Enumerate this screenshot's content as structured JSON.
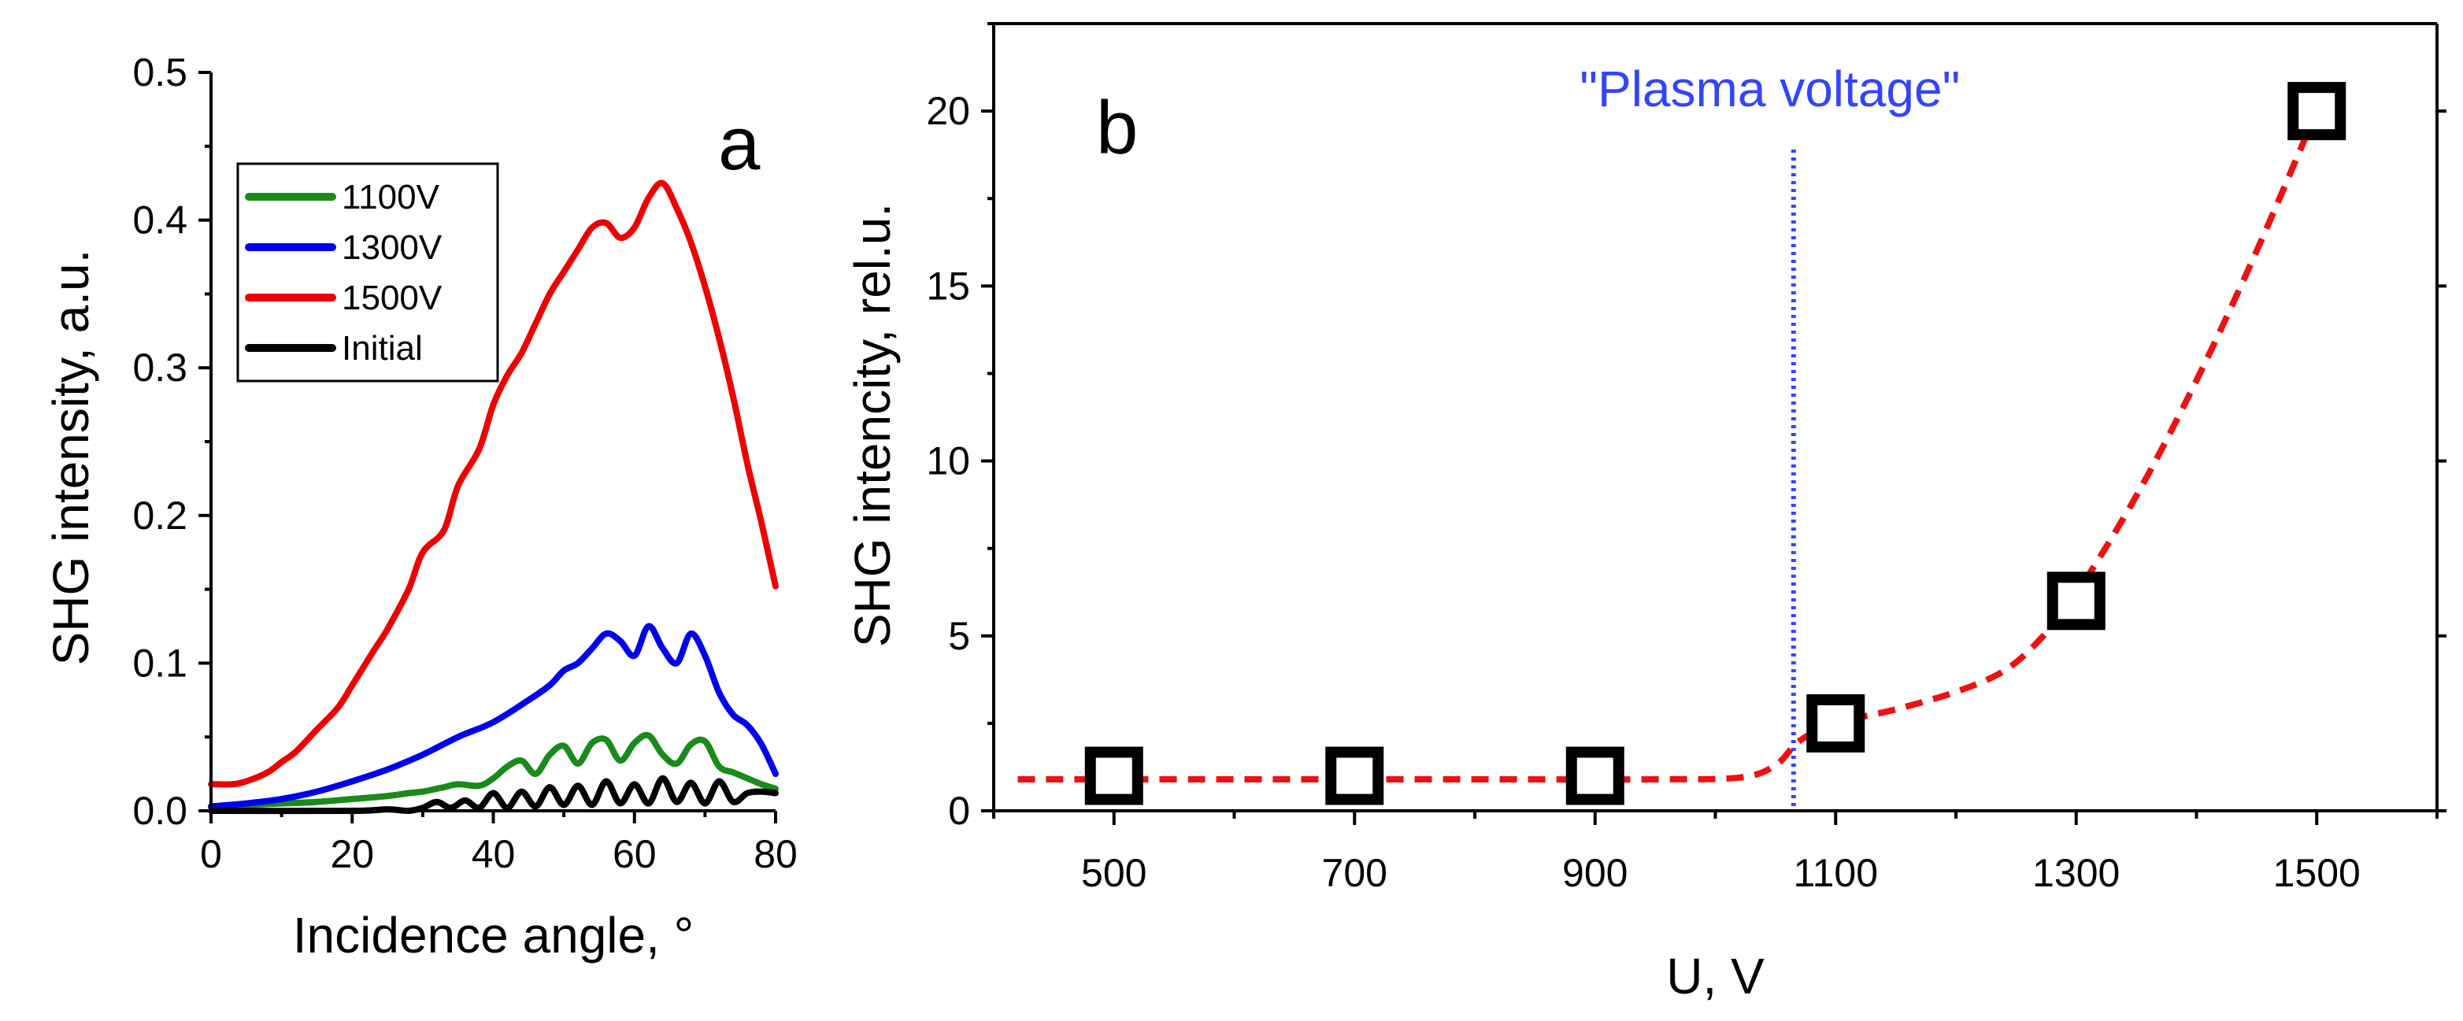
{
  "colors": {
    "green": "#1a8a1a",
    "blue": "#0000ee",
    "red": "#ee0000",
    "black": "#000000",
    "vline": "#3344ff",
    "fit": "#ee1111"
  },
  "chart_data": [
    {
      "id": "a",
      "type": "line",
      "panel_label": "a",
      "xlabel": "Incidence angle, °",
      "ylabel": "SHG intensity, a.u.",
      "xlim": [
        0,
        80
      ],
      "ylim": [
        0,
        0.5
      ],
      "xticks": [
        0,
        20,
        40,
        60,
        80
      ],
      "xtick_labels": [
        "0",
        "20",
        "40",
        "60",
        "80"
      ],
      "yticks": [
        0.0,
        0.1,
        0.2,
        0.3,
        0.4,
        0.5
      ],
      "ytick_labels": [
        "0.0",
        "0.1",
        "0.2",
        "0.3",
        "0.4",
        "0.5"
      ],
      "legend_position": "top-left",
      "series": [
        {
          "name": "1100V",
          "color_key": "green",
          "x": [
            0,
            5,
            10,
            15,
            20,
            25,
            28,
            30,
            33,
            35,
            38,
            40,
            42,
            44,
            46,
            48,
            50,
            52,
            54,
            56,
            58,
            60,
            62,
            64,
            66,
            68,
            70,
            72,
            74,
            76,
            78,
            80
          ],
          "y": [
            0.003,
            0.004,
            0.005,
            0.006,
            0.008,
            0.01,
            0.012,
            0.013,
            0.016,
            0.018,
            0.017,
            0.022,
            0.03,
            0.034,
            0.025,
            0.038,
            0.044,
            0.032,
            0.046,
            0.048,
            0.034,
            0.046,
            0.051,
            0.038,
            0.032,
            0.045,
            0.047,
            0.03,
            0.026,
            0.022,
            0.018,
            0.015
          ]
        },
        {
          "name": "1300V",
          "color_key": "blue",
          "x": [
            0,
            5,
            10,
            15,
            20,
            25,
            30,
            35,
            40,
            45,
            48,
            50,
            52,
            54,
            56,
            58,
            60,
            62,
            64,
            66,
            68,
            70,
            72,
            74,
            76,
            78,
            80
          ],
          "y": [
            0.003,
            0.005,
            0.008,
            0.013,
            0.02,
            0.028,
            0.038,
            0.05,
            0.06,
            0.075,
            0.085,
            0.095,
            0.1,
            0.11,
            0.12,
            0.115,
            0.105,
            0.125,
            0.11,
            0.1,
            0.12,
            0.105,
            0.08,
            0.065,
            0.058,
            0.045,
            0.025
          ]
        },
        {
          "name": "1500V",
          "color_key": "red",
          "x": [
            0,
            3,
            5,
            8,
            10,
            12,
            15,
            18,
            20,
            23,
            25,
            28,
            30,
            33,
            35,
            38,
            40,
            42,
            44,
            46,
            48,
            50,
            52,
            54,
            56,
            58,
            60,
            62,
            64,
            66,
            68,
            70,
            72,
            74,
            76,
            78,
            80
          ],
          "y": [
            0.018,
            0.018,
            0.02,
            0.026,
            0.033,
            0.04,
            0.055,
            0.07,
            0.085,
            0.108,
            0.123,
            0.15,
            0.175,
            0.19,
            0.22,
            0.245,
            0.275,
            0.295,
            0.31,
            0.33,
            0.35,
            0.365,
            0.38,
            0.395,
            0.398,
            0.388,
            0.395,
            0.415,
            0.425,
            0.408,
            0.385,
            0.355,
            0.32,
            0.28,
            0.235,
            0.195,
            0.152
          ]
        },
        {
          "name": "Initial",
          "color_key": "black",
          "x": [
            0,
            20,
            25,
            28,
            30,
            32,
            34,
            36,
            38,
            40,
            42,
            44,
            46,
            48,
            50,
            52,
            54,
            56,
            58,
            60,
            62,
            64,
            66,
            68,
            70,
            72,
            74,
            76,
            78,
            80
          ],
          "y": [
            0.0,
            0.0,
            0.001,
            0.0,
            0.002,
            0.006,
            0.002,
            0.007,
            0.002,
            0.012,
            0.002,
            0.013,
            0.003,
            0.016,
            0.004,
            0.017,
            0.004,
            0.02,
            0.005,
            0.018,
            0.005,
            0.022,
            0.006,
            0.019,
            0.005,
            0.02,
            0.006,
            0.012,
            0.013,
            0.012
          ]
        }
      ]
    },
    {
      "id": "b",
      "type": "scatter",
      "panel_label": "b",
      "xlabel": "U, V",
      "ylabel": "SHG intencity, rel.u.",
      "xlim": [
        400,
        1600
      ],
      "ylim": [
        0,
        22.5
      ],
      "xticks": [
        500,
        700,
        900,
        1100,
        1300,
        1500
      ],
      "xtick_labels": [
        "500",
        "700",
        "900",
        "1100",
        "1300",
        "1500"
      ],
      "xminor": [
        400,
        600,
        800,
        1000,
        1200,
        1400,
        1600
      ],
      "yticks": [
        0,
        5,
        10,
        15,
        20
      ],
      "ytick_labels": [
        "0",
        "5",
        "10",
        "15",
        "20"
      ],
      "points": {
        "x": [
          500,
          700,
          900,
          1100,
          1300,
          1500
        ],
        "y": [
          1.0,
          1.0,
          1.0,
          2.5,
          6.0,
          20.0
        ]
      },
      "fit_curve": {
        "x": [
          420,
          600,
          800,
          950,
          1020,
          1050,
          1070,
          1100,
          1150,
          1200,
          1240,
          1270,
          1300,
          1350,
          1400,
          1450,
          1500
        ],
        "y": [
          0.9,
          0.9,
          0.9,
          0.9,
          0.95,
          1.3,
          2.0,
          2.5,
          2.9,
          3.4,
          4.0,
          4.9,
          6.2,
          9.0,
          12.3,
          16.0,
          20.0
        ]
      },
      "vline": {
        "x": 1065,
        "label": "\"Plasma voltage\""
      }
    }
  ]
}
